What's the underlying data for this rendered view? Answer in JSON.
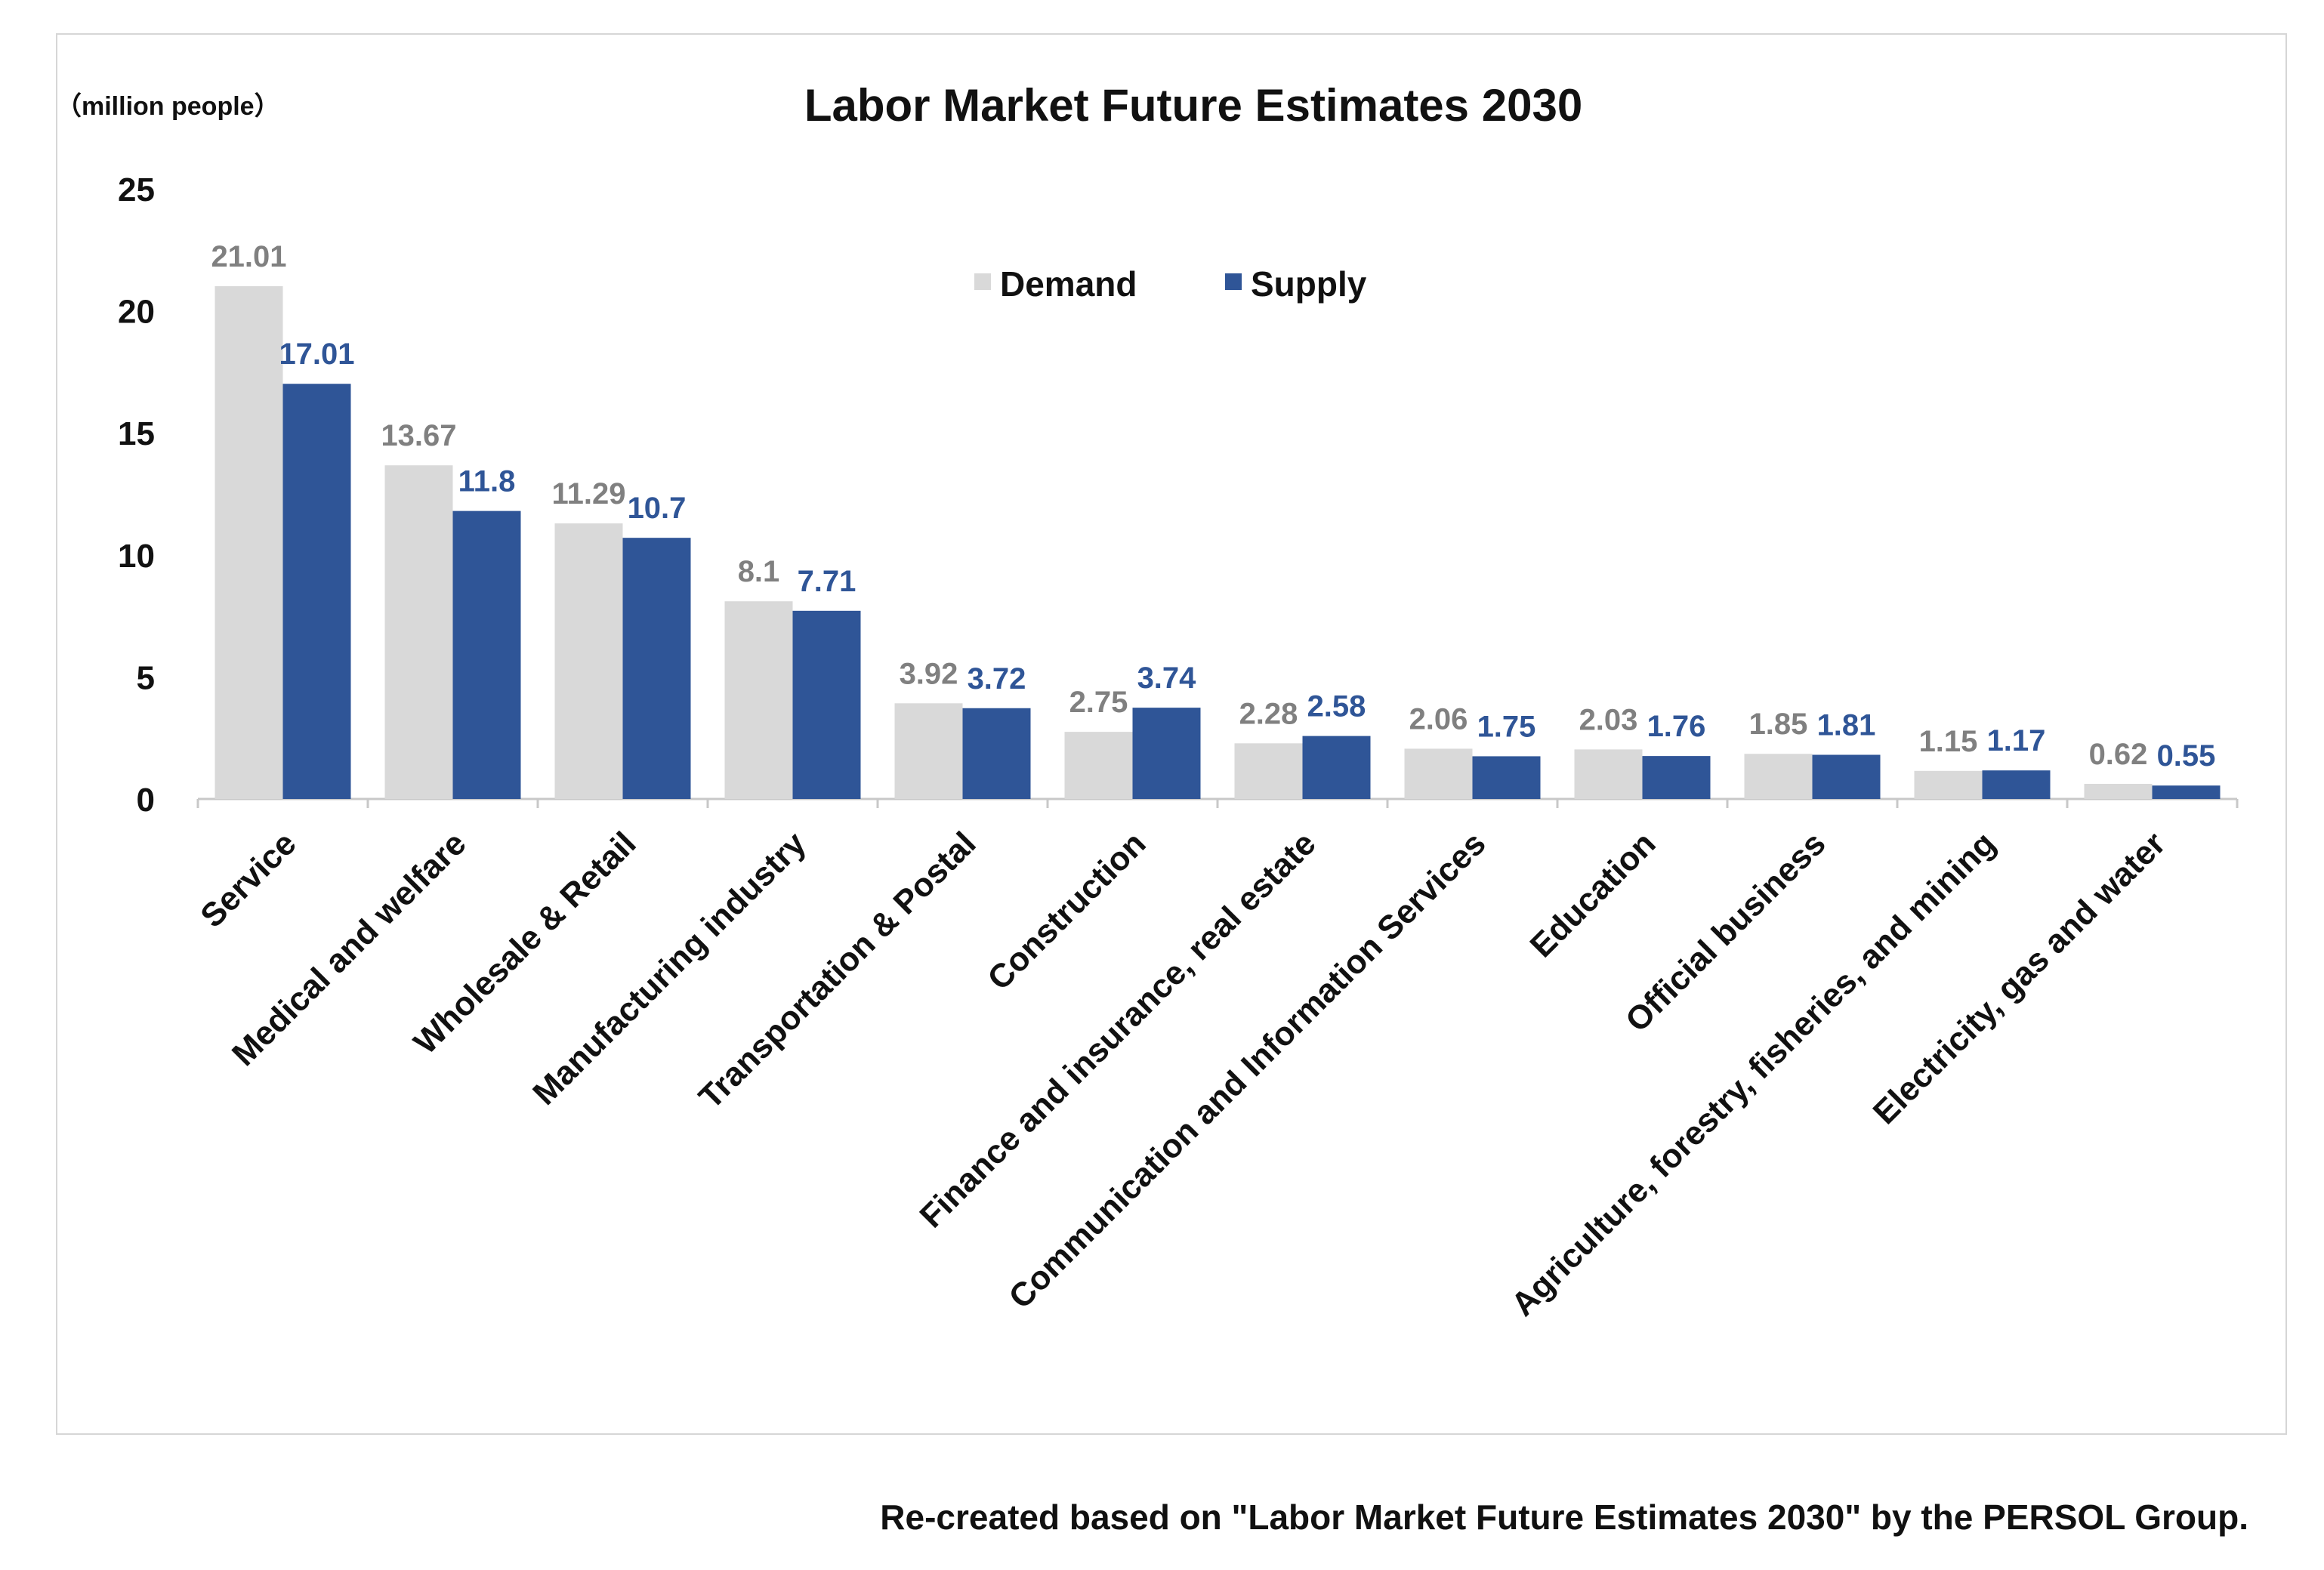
{
  "chart_data": {
    "type": "bar",
    "title": "Labor Market Future Estimates 2030",
    "unit_label": "（million people）",
    "xlabel": "",
    "ylabel": "",
    "ylim": [
      0,
      25
    ],
    "yticks": [
      0,
      5,
      10,
      15,
      20,
      25
    ],
    "grid": false,
    "legend_position": "top-center",
    "categories": [
      "Service",
      "Medical and welfare",
      "Wholesale & Retail",
      "Manufacturing industry",
      "Transportation & Postal",
      "Construction",
      "Finance and insurance, real estate",
      "Communication and Information Services",
      "Education",
      "Official business",
      "Agriculture, forestry, fisheries, and mining",
      "Electricity, gas and water"
    ],
    "series": [
      {
        "name": "Demand",
        "color": "#d9d9d9",
        "label_color": "#808080",
        "values": [
          21.01,
          13.67,
          11.29,
          8.1,
          3.92,
          2.75,
          2.28,
          2.06,
          2.03,
          1.85,
          1.15,
          0.62
        ]
      },
      {
        "name": "Supply",
        "color": "#2f5597",
        "label_color": "#2f5597",
        "values": [
          17.01,
          11.8,
          10.7,
          7.71,
          3.72,
          3.74,
          2.58,
          1.75,
          1.76,
          1.81,
          1.17,
          0.55
        ]
      }
    ]
  },
  "footer": {
    "source": "Re-created based on \"Labor Market Future Estimates 2030\" by the PERSOL Group."
  }
}
